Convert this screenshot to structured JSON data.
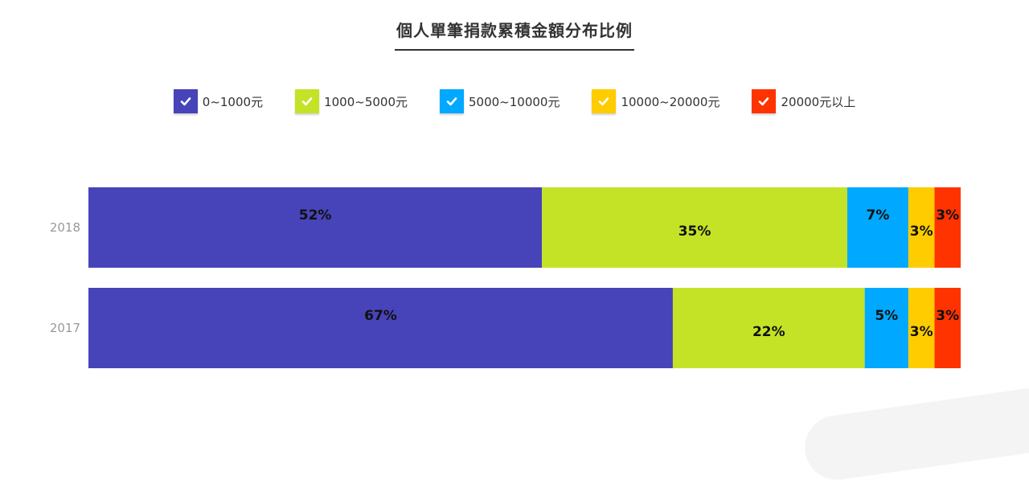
{
  "title": "個人單筆捐款累積金額分布比例",
  "chart_data": {
    "type": "bar",
    "orientation": "horizontal",
    "stacked": true,
    "categories": [
      "2018",
      "2017"
    ],
    "series": [
      {
        "name": "0~1000元",
        "color": "#4743b9",
        "values": [
          52,
          67
        ],
        "labels": [
          "52%",
          "67%"
        ]
      },
      {
        "name": "1000~5000元",
        "color": "#c4e327",
        "values": [
          35,
          22
        ],
        "labels": [
          "35%",
          "22%"
        ]
      },
      {
        "name": "5000~10000元",
        "color": "#00a8ff",
        "values": [
          7,
          5
        ],
        "labels": [
          "7%",
          "5%"
        ]
      },
      {
        "name": "10000~20000元",
        "color": "#ffcc00",
        "values": [
          3,
          3
        ],
        "labels": [
          "3%",
          "3%"
        ]
      },
      {
        "name": "20000元以上",
        "color": "#ff3300",
        "values": [
          3,
          3
        ],
        "labels": [
          "3%",
          "3%"
        ]
      }
    ],
    "legend_position": "top-center",
    "grid": false
  }
}
